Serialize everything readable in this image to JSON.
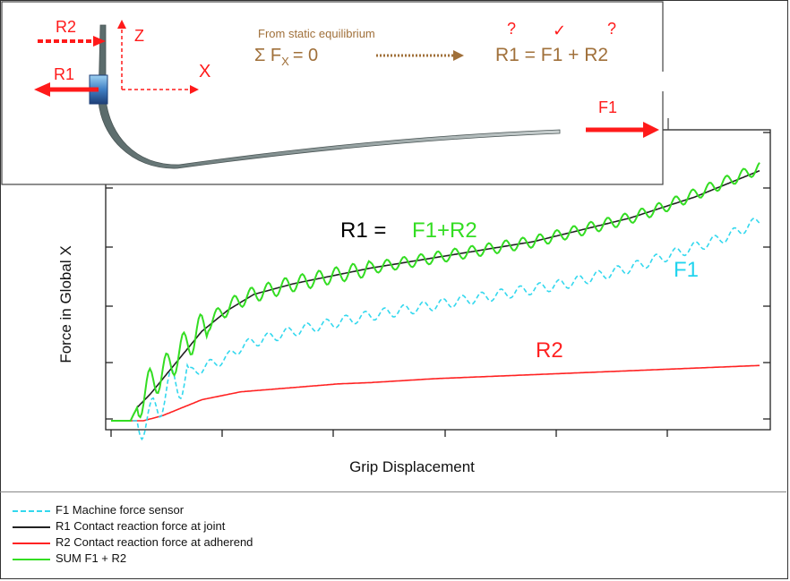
{
  "diagram": {
    "r2_label": "R2",
    "r1_label": "R1",
    "z_label": "Z",
    "x_label": "X",
    "equilibrium_caption": "From static equilibrium",
    "equilibrium_equation": "Σ F",
    "equilibrium_sub": "X",
    "equilibrium_rhs": "= 0",
    "marks": [
      "?",
      "✓",
      "?"
    ],
    "result_equation": "R1 = F1 + R2",
    "f1_label": "F1",
    "colors": {
      "red": "#ff1a1a",
      "brown": "#a0703a"
    }
  },
  "chart_data": {
    "type": "line",
    "title": "",
    "xlabel": "Grip Displacement",
    "ylabel": "Force in Global X",
    "xlim": [
      0,
      100
    ],
    "ylim": [
      0,
      100
    ],
    "grid": false,
    "legend_position": "bottom-left",
    "annotations": [
      {
        "text": "R1 = ",
        "color": "#000000"
      },
      {
        "text": "F1+R2",
        "color": "#33dd22"
      },
      {
        "text": "F1",
        "color": "#22d4ee"
      },
      {
        "text": "R2",
        "color": "#ff2222"
      }
    ],
    "series": [
      {
        "name": "F1 Machine force sensor",
        "color": "#33d8ee",
        "style": "dashed",
        "x": [
          0,
          3,
          6,
          8,
          10,
          12,
          14,
          16,
          18,
          20,
          22,
          25,
          28,
          32,
          36,
          40,
          45,
          50,
          55,
          60,
          65,
          70,
          75,
          80,
          85,
          90,
          95,
          100
        ],
        "y": [
          0,
          0,
          0,
          10,
          14,
          18,
          20,
          22,
          24,
          28,
          30,
          32,
          34,
          36,
          38,
          40,
          42,
          44,
          46,
          48,
          50,
          52,
          55,
          58,
          62,
          66,
          70,
          76
        ]
      },
      {
        "name": "R1 Contact reaction force at joint",
        "color": "#222222",
        "style": "solid",
        "x": [
          0,
          3,
          4,
          6,
          8,
          10,
          12,
          14,
          16,
          18,
          20,
          22,
          25,
          28,
          32,
          36,
          40,
          45,
          50,
          55,
          60,
          65,
          70,
          75,
          80,
          85,
          90,
          95,
          100
        ],
        "y": [
          0,
          0,
          5,
          10,
          16,
          22,
          28,
          34,
          38,
          42,
          45,
          48,
          50,
          52,
          54,
          56,
          58,
          60,
          62,
          64,
          66,
          68,
          71,
          74,
          77,
          81,
          85,
          90,
          95
        ]
      },
      {
        "name": "R2 Contact reaction force at adherend",
        "color": "#ff2222",
        "style": "solid",
        "x": [
          0,
          5,
          8,
          10,
          12,
          14,
          16,
          18,
          20,
          25,
          30,
          35,
          40,
          50,
          60,
          70,
          80,
          90,
          100
        ],
        "y": [
          0,
          0,
          2,
          4,
          6,
          8,
          9,
          10,
          11,
          12,
          13,
          14,
          14.5,
          16,
          17,
          18,
          19,
          20,
          21
        ]
      },
      {
        "name": "SUM  F1 + R2",
        "color": "#33dd22",
        "style": "solid",
        "x": [
          0,
          3,
          4,
          6,
          8,
          10,
          12,
          14,
          16,
          18,
          20,
          22,
          25,
          28,
          32,
          36,
          40,
          45,
          50,
          55,
          60,
          65,
          70,
          75,
          80,
          85,
          90,
          95,
          100
        ],
        "y": [
          0,
          0,
          5,
          14,
          18,
          24,
          30,
          35,
          39,
          43,
          46,
          48,
          50,
          52,
          54,
          56,
          58,
          60,
          62,
          64,
          66,
          68,
          71,
          74,
          77,
          81,
          86,
          91,
          96
        ]
      }
    ]
  }
}
